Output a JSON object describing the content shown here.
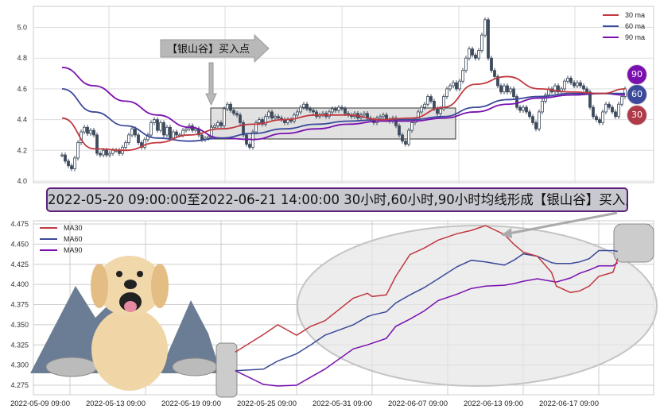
{
  "top_chart": {
    "type": "candlestick",
    "ylim": [
      4.0,
      5.1
    ],
    "yticks": [
      "4.0",
      "4.2",
      "4.4",
      "4.6",
      "4.8",
      "5.0"
    ],
    "grid": true,
    "legend": {
      "placement": "top-right",
      "entries": [
        "30 ma",
        "60 ma",
        "90 ma"
      ]
    },
    "colors": {
      "ma30": "#c0383f",
      "ma60": "#3b4a9a",
      "ma90": "#7a10b0",
      "candle": "#3c4a5c"
    },
    "annotation_label": "【银山谷】买入点",
    "badges": [
      "90",
      "60",
      "30"
    ],
    "close": [
      4.17,
      4.13,
      4.1,
      4.08,
      4.15,
      4.25,
      4.32,
      4.35,
      4.31,
      4.33,
      4.3,
      4.18,
      4.17,
      4.2,
      4.17,
      4.18,
      4.2,
      4.2,
      4.18,
      4.22,
      4.25,
      4.3,
      4.34,
      4.3,
      4.25,
      4.22,
      4.27,
      4.3,
      4.38,
      4.4,
      4.33,
      4.38,
      4.3,
      4.35,
      4.28,
      4.32,
      4.3,
      4.3,
      4.33,
      4.34,
      4.36,
      4.33,
      4.34,
      4.3,
      4.27,
      4.28,
      4.29,
      4.35,
      4.36,
      4.38,
      4.36,
      4.47,
      4.5,
      4.46,
      4.44,
      4.43,
      4.38,
      4.3,
      4.24,
      4.22,
      4.32,
      4.38,
      4.4,
      4.37,
      4.42,
      4.45,
      4.41,
      4.42,
      4.41,
      4.4,
      4.38,
      4.4,
      4.39,
      4.43,
      4.45,
      4.48,
      4.5,
      4.47,
      4.46,
      4.45,
      4.42,
      4.43,
      4.44,
      4.42,
      4.45,
      4.47,
      4.46,
      4.48,
      4.47,
      4.44,
      4.43,
      4.42,
      4.44,
      4.41,
      4.43,
      4.44,
      4.41,
      4.4,
      4.38,
      4.41,
      4.42,
      4.43,
      4.4,
      4.39,
      4.41,
      4.36,
      4.3,
      4.26,
      4.24,
      4.33,
      4.38,
      4.4,
      4.45,
      4.48,
      4.5,
      4.55,
      4.52,
      4.47,
      4.44,
      4.47,
      4.55,
      4.6,
      4.62,
      4.64,
      4.6,
      4.65,
      4.72,
      4.8,
      4.86,
      4.82,
      4.8,
      4.85,
      4.95,
      5.05,
      4.8,
      4.72,
      4.68,
      4.62,
      4.58,
      4.62,
      4.58,
      4.6,
      4.55,
      4.48,
      4.46,
      4.48,
      4.45,
      4.42,
      4.38,
      4.34,
      4.45,
      4.52,
      4.56,
      4.6,
      4.58,
      4.62,
      4.58,
      4.6,
      4.65,
      4.67,
      4.64,
      4.62,
      4.64,
      4.62,
      4.6,
      4.58,
      4.48,
      4.42,
      4.4,
      4.38,
      4.45,
      4.5,
      4.48,
      4.45,
      4.42,
      4.5,
      4.55,
      4.6
    ],
    "ma_sample_every": 10,
    "ma30": [
      4.41,
      4.21,
      4.2,
      4.25,
      4.3,
      4.34,
      4.37,
      4.4,
      4.43,
      4.43,
      4.4,
      4.41,
      4.48,
      4.63,
      4.68,
      4.6,
      4.58,
      4.57,
      4.6
    ],
    "ma60": [
      4.6,
      4.45,
      4.36,
      4.28,
      4.26,
      4.28,
      4.31,
      4.34,
      4.37,
      4.39,
      4.4,
      4.4,
      4.42,
      4.48,
      4.53,
      4.55,
      4.57,
      4.57,
      4.57
    ],
    "ma90": [
      4.74,
      4.62,
      4.52,
      4.43,
      4.35,
      4.28,
      4.27,
      4.31,
      4.34,
      4.37,
      4.39,
      4.39,
      4.41,
      4.45,
      4.5,
      4.54,
      4.56,
      4.57,
      4.56
    ]
  },
  "banner": {
    "text": "2022-05-20 09:00:00至2022-06-21 14:00:00 30小时,60小时,90小时均线形成【银山谷】买入点"
  },
  "chart_data": {
    "type": "line",
    "ylim": [
      4.27,
      4.48
    ],
    "yticks": [
      "4.275",
      "4.300",
      "4.325",
      "4.350",
      "4.375",
      "4.400",
      "4.425",
      "4.450",
      "4.475"
    ],
    "xticks": [
      "2022-05-09 09:00",
      "2022-05-13 09:00",
      "2022-05-19 09:00",
      "2022-05-25 09:00",
      "2022-05-31 09:00",
      "2022-06-07 09:00",
      "2022-06-13 09:00",
      "2022-06-17 09:00"
    ],
    "grid": true,
    "legend": "top-left",
    "x": [
      "2022-05-19 14:00",
      "2022-05-23 10:00",
      "2022-05-24 09:00",
      "2022-05-25 09:00",
      "2022-05-25 14:00",
      "2022-05-26 13:00",
      "2022-05-30 09:00",
      "2022-05-30 14:00",
      "2022-05-31 09:00",
      "2022-05-31 14:00",
      "2022-06-01 10:00",
      "2022-06-02 09:00",
      "2022-06-02 14:00",
      "2022-06-06 13:00",
      "2022-06-07 13:00",
      "2022-06-08 10:00",
      "2022-06-09 09:00",
      "2022-06-10 09:00",
      "2022-06-10 13:00",
      "2022-06-13 09:00",
      "2022-06-13 14:00",
      "2022-06-14 13:00",
      "2022-06-14 14:00",
      "2022-06-15 13:00",
      "2022-06-16 09:00",
      "2022-06-16 13:00",
      "2022-06-17 09:00",
      "2022-06-17 14:00",
      "2022-06-20 09:00"
    ],
    "series": [
      {
        "name": "MA30",
        "color": "#c0383f",
        "values": [
          4.316,
          4.338,
          4.35,
          4.337,
          4.348,
          4.355,
          4.383,
          4.389,
          4.385,
          4.387,
          4.41,
          4.437,
          4.445,
          4.455,
          4.463,
          4.467,
          4.473,
          4.462,
          4.45,
          4.44,
          4.435,
          4.415,
          4.398,
          4.39,
          4.392,
          4.398,
          4.41,
          4.415,
          4.432
        ]
      },
      {
        "name": "MA60",
        "color": "#3b4a9a",
        "values": [
          4.293,
          4.295,
          4.305,
          4.314,
          4.325,
          4.337,
          4.35,
          4.36,
          4.362,
          4.366,
          4.377,
          4.387,
          4.396,
          4.407,
          4.422,
          4.43,
          4.428,
          4.424,
          4.43,
          4.438,
          4.435,
          4.427,
          4.426,
          4.426,
          4.428,
          4.432,
          4.442,
          4.442,
          4.441
        ]
      },
      {
        "name": "MA90",
        "color": "#7a10b0",
        "values": [
          4.293,
          4.276,
          4.274,
          4.275,
          4.285,
          4.295,
          4.32,
          4.325,
          4.327,
          4.333,
          4.348,
          4.357,
          4.367,
          4.38,
          4.388,
          4.395,
          4.398,
          4.399,
          4.401,
          4.404,
          4.407,
          4.404,
          4.403,
          4.408,
          4.414,
          4.418,
          4.423,
          4.423,
          4.427
        ]
      }
    ]
  }
}
